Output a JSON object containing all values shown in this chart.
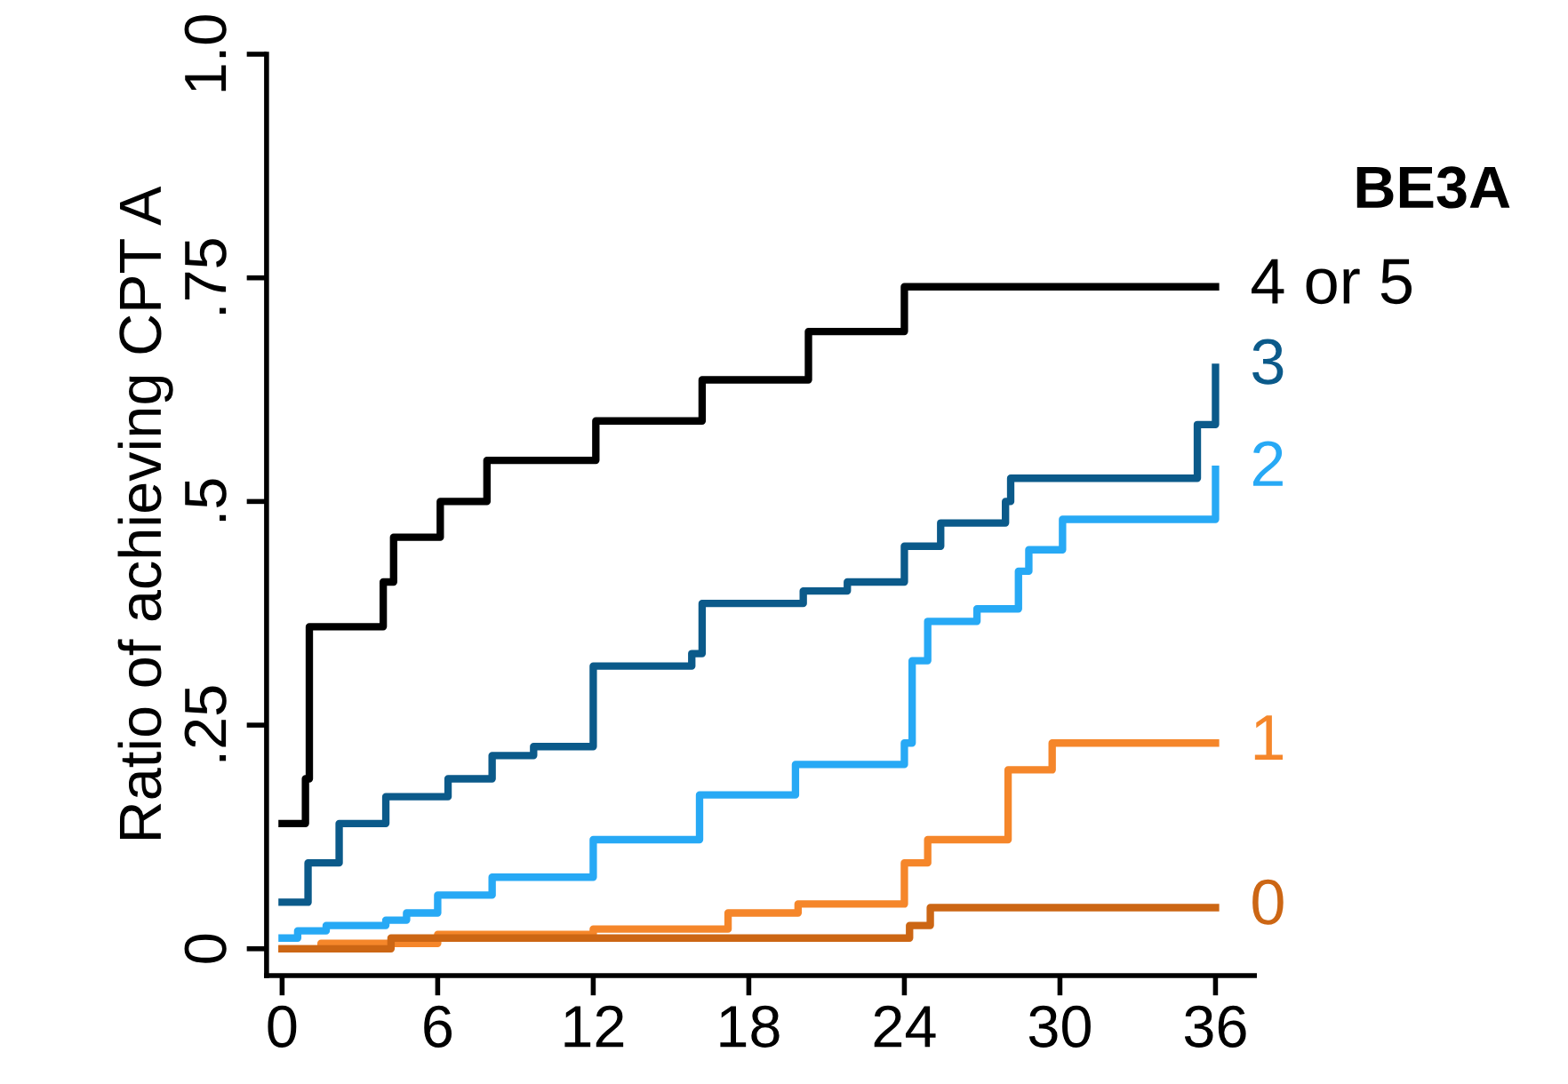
{
  "chart_data": {
    "type": "step",
    "ylabel": "Ratio of achieving CPT A",
    "legend_title": "BE3A",
    "xlim": [
      -0.6,
      37.5
    ],
    "ylim": [
      -0.03,
      1.0
    ],
    "xticks": [
      0,
      6,
      12,
      18,
      24,
      30,
      36
    ],
    "yticks": [
      0,
      {
        "value": 0.25,
        "label": ".25"
      },
      {
        "value": 0.5,
        "label": ".5"
      },
      {
        "value": 0.75,
        "label": ".75"
      },
      {
        "value": 1.0,
        "label": "1.0"
      }
    ],
    "grid": false,
    "legend": "right",
    "line_style": "solid",
    "marker": "none",
    "series": [
      {
        "name": "4 or 5",
        "color": "#000000",
        "x": [
          0,
          0.9,
          1.05,
          3.9,
          4.3,
          6.1,
          7.9,
          12.1,
          16.2,
          20.3,
          24.0,
          36
        ],
        "values": [
          0.14,
          0.19,
          0.36,
          0.41,
          0.46,
          0.5,
          0.546,
          0.59,
          0.636,
          0.69,
          0.74,
          0.74
        ]
      },
      {
        "name": "3",
        "color": "#0b5a8a",
        "x": [
          0,
          1.0,
          2.2,
          4.0,
          6.4,
          8.1,
          9.7,
          12.0,
          15.8,
          16.2,
          20.1,
          21.8,
          24.0,
          25.4,
          27.9,
          28.1,
          35.3,
          36
        ],
        "values": [
          0.052,
          0.096,
          0.14,
          0.17,
          0.19,
          0.216,
          0.226,
          0.316,
          0.33,
          0.386,
          0.4,
          0.41,
          0.45,
          0.476,
          0.5,
          0.526,
          0.586,
          0.65
        ]
      },
      {
        "name": "2",
        "color": "#27a9f5",
        "x": [
          0,
          0.6,
          1.7,
          4.0,
          4.8,
          6.0,
          8.1,
          12.0,
          16.1,
          19.8,
          24.0,
          24.3,
          24.9,
          26.8,
          28.4,
          28.8,
          30.1,
          36
        ],
        "values": [
          0.012,
          0.02,
          0.026,
          0.032,
          0.04,
          0.06,
          0.08,
          0.122,
          0.172,
          0.206,
          0.23,
          0.322,
          0.366,
          0.38,
          0.422,
          0.446,
          0.48,
          0.536
        ]
      },
      {
        "name": "1",
        "color": "#f5862a",
        "x": [
          0,
          1.5,
          6.0,
          12.0,
          17.2,
          19.9,
          24.0,
          24.9,
          28.0,
          29.7,
          36
        ],
        "values": [
          0,
          0.006,
          0.016,
          0.022,
          0.04,
          0.05,
          0.096,
          0.122,
          0.2,
          0.23,
          0.23
        ]
      },
      {
        "name": "0",
        "color": "#cc6614",
        "x": [
          0,
          4.2,
          24.2,
          25.0,
          36
        ],
        "values": [
          0,
          0.012,
          0.026,
          0.046,
          0.046
        ]
      }
    ]
  }
}
